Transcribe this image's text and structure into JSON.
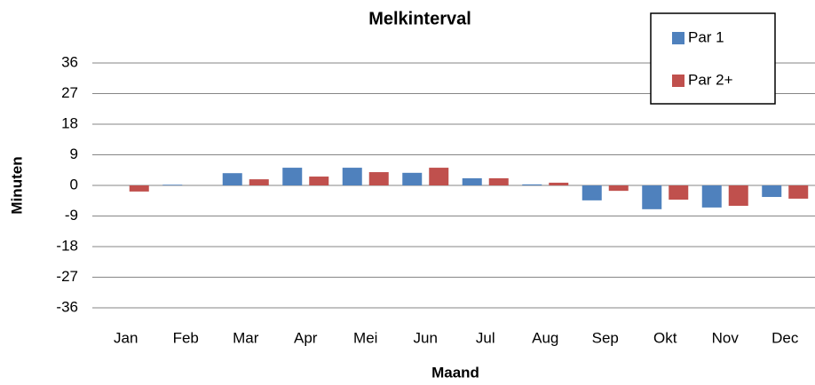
{
  "chart_data": {
    "type": "bar",
    "title": "Melkinterval",
    "x_label": "Maand",
    "y_label": "Minuten",
    "categories": [
      "Jan",
      "Feb",
      "Mar",
      "Apr",
      "Mei",
      "Jun",
      "Jul",
      "Aug",
      "Sep",
      "Okt",
      "Nov",
      "Dec"
    ],
    "series": [
      {
        "name": "Par 1",
        "color": "#4f81bd",
        "values": [
          0,
          0.2,
          3.6,
          5.2,
          5.2,
          3.7,
          2.1,
          0.3,
          -4.4,
          -7,
          -6.5,
          -3.4
        ]
      },
      {
        "name": "Par 2+",
        "color": "#c0504d",
        "values": [
          -1.8,
          0,
          1.8,
          2.6,
          3.9,
          5.2,
          2.1,
          0.8,
          -1.6,
          -4.2,
          -6,
          -3.9
        ]
      }
    ],
    "ylim": [
      -36,
      36
    ],
    "yticks": [
      -36,
      -27,
      -18,
      -9,
      0,
      9,
      18,
      27,
      36
    ],
    "grid": true,
    "legend": "top-right"
  }
}
